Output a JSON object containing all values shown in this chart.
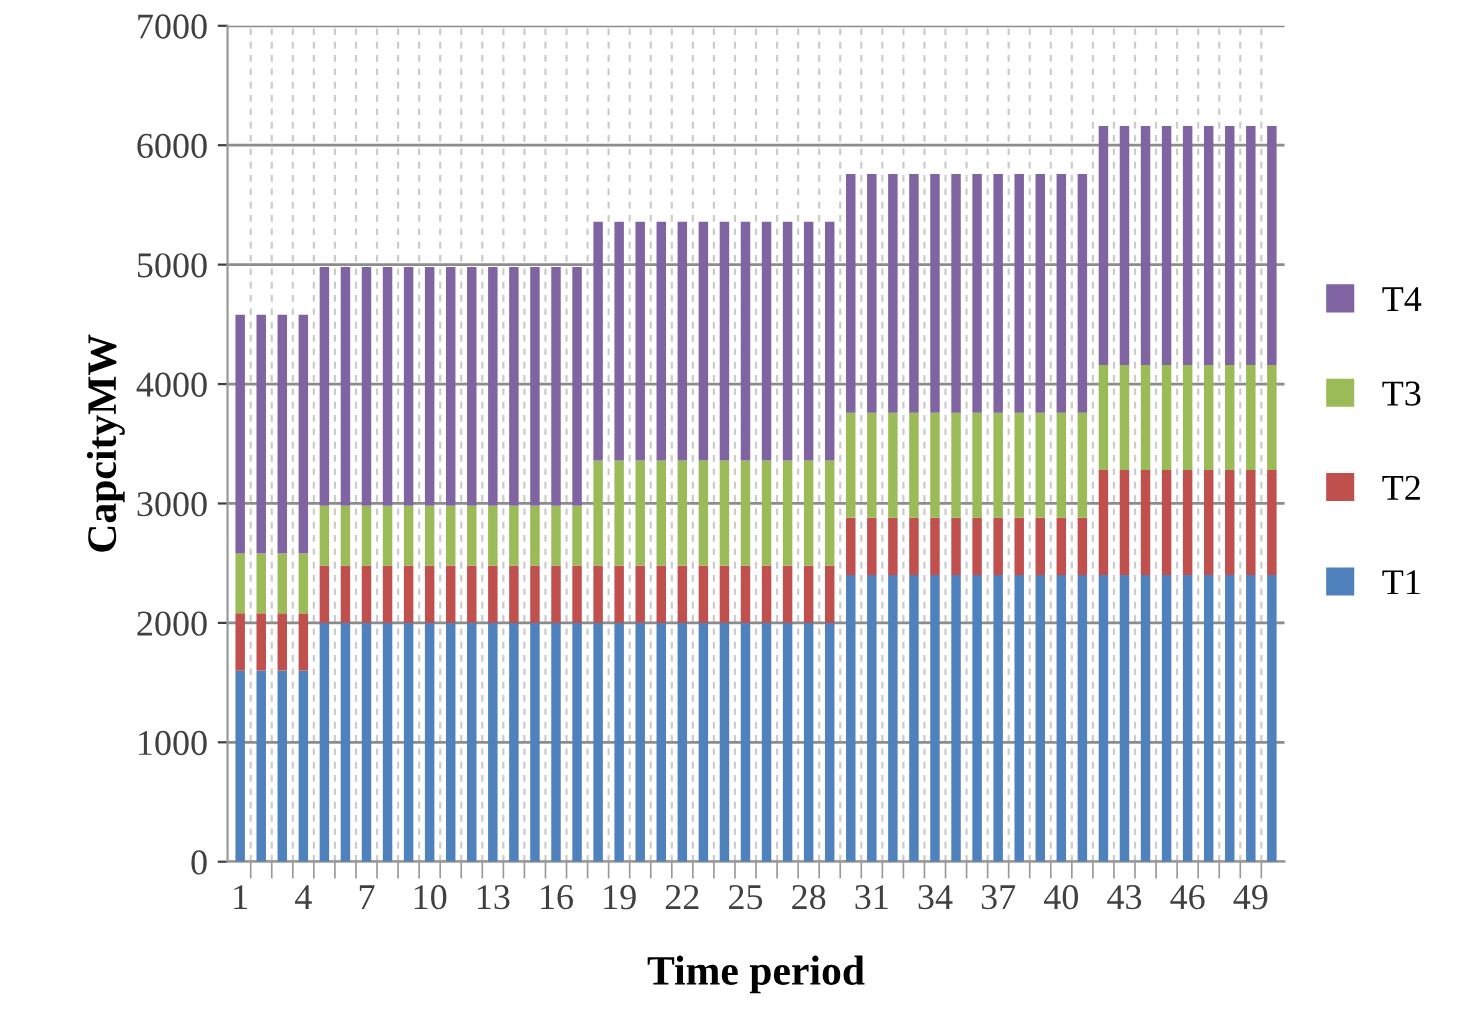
{
  "chart_data": {
    "type": "bar",
    "stacked": true,
    "xlabel": "Time period",
    "ylabel": "CapcityMW",
    "categories": [
      "1",
      null,
      null,
      "4",
      null,
      null,
      "7",
      null,
      null,
      "10",
      null,
      null,
      "13",
      null,
      null,
      "16",
      null,
      null,
      "19",
      null,
      null,
      "22",
      null,
      null,
      "25",
      null,
      null,
      "28",
      null,
      null,
      "31",
      null,
      null,
      "34",
      null,
      null,
      "37",
      null,
      null,
      "40",
      null,
      null,
      "43",
      null,
      null,
      "46",
      null,
      null,
      "49",
      null
    ],
    "series": [
      {
        "name": "T1",
        "color": "#4f81bd",
        "values": [
          1600,
          1600,
          1600,
          1600,
          2000,
          2000,
          2000,
          2000,
          2000,
          2000,
          2000,
          2000,
          2000,
          2000,
          2000,
          2000,
          2000,
          2000,
          2000,
          2000,
          2000,
          2000,
          2000,
          2000,
          2000,
          2000,
          2000,
          2000,
          2000,
          2400,
          2400,
          2400,
          2400,
          2400,
          2400,
          2400,
          2400,
          2400,
          2400,
          2400,
          2400,
          2400,
          2400,
          2400,
          2400,
          2400,
          2400,
          2400,
          2400,
          2400
        ]
      },
      {
        "name": "T2",
        "color": "#c0504d",
        "values": [
          480,
          480,
          480,
          480,
          480,
          480,
          480,
          480,
          480,
          480,
          480,
          480,
          480,
          480,
          480,
          480,
          480,
          480,
          480,
          480,
          480,
          480,
          480,
          480,
          480,
          480,
          480,
          480,
          480,
          480,
          480,
          480,
          480,
          480,
          480,
          480,
          480,
          480,
          480,
          480,
          480,
          880,
          880,
          880,
          880,
          880,
          880,
          880,
          880,
          880
        ]
      },
      {
        "name": "T3",
        "color": "#9bbb59",
        "values": [
          500,
          500,
          500,
          500,
          500,
          500,
          500,
          500,
          500,
          500,
          500,
          500,
          500,
          500,
          500,
          500,
          500,
          880,
          880,
          880,
          880,
          880,
          880,
          880,
          880,
          880,
          880,
          880,
          880,
          880,
          880,
          880,
          880,
          880,
          880,
          880,
          880,
          880,
          880,
          880,
          880,
          880,
          880,
          880,
          880,
          880,
          880,
          880,
          880,
          880
        ]
      },
      {
        "name": "T4",
        "color": "#8064a2",
        "values": [
          2000,
          2000,
          2000,
          2000,
          2000,
          2000,
          2000,
          2000,
          2000,
          2000,
          2000,
          2000,
          2000,
          2000,
          2000,
          2000,
          2000,
          2000,
          2000,
          2000,
          2000,
          2000,
          2000,
          2000,
          2000,
          2000,
          2000,
          2000,
          2000,
          2000,
          2000,
          2000,
          2000,
          2000,
          2000,
          2000,
          2000,
          2000,
          2000,
          2000,
          2000,
          2000,
          2000,
          2000,
          2000,
          2000,
          2000,
          2000,
          2000,
          2000
        ]
      }
    ],
    "ylim": [
      0,
      7000
    ],
    "yticks": [
      0,
      1000,
      2000,
      3000,
      4000,
      5000,
      6000,
      7000
    ],
    "grid": true,
    "legend": "right"
  }
}
